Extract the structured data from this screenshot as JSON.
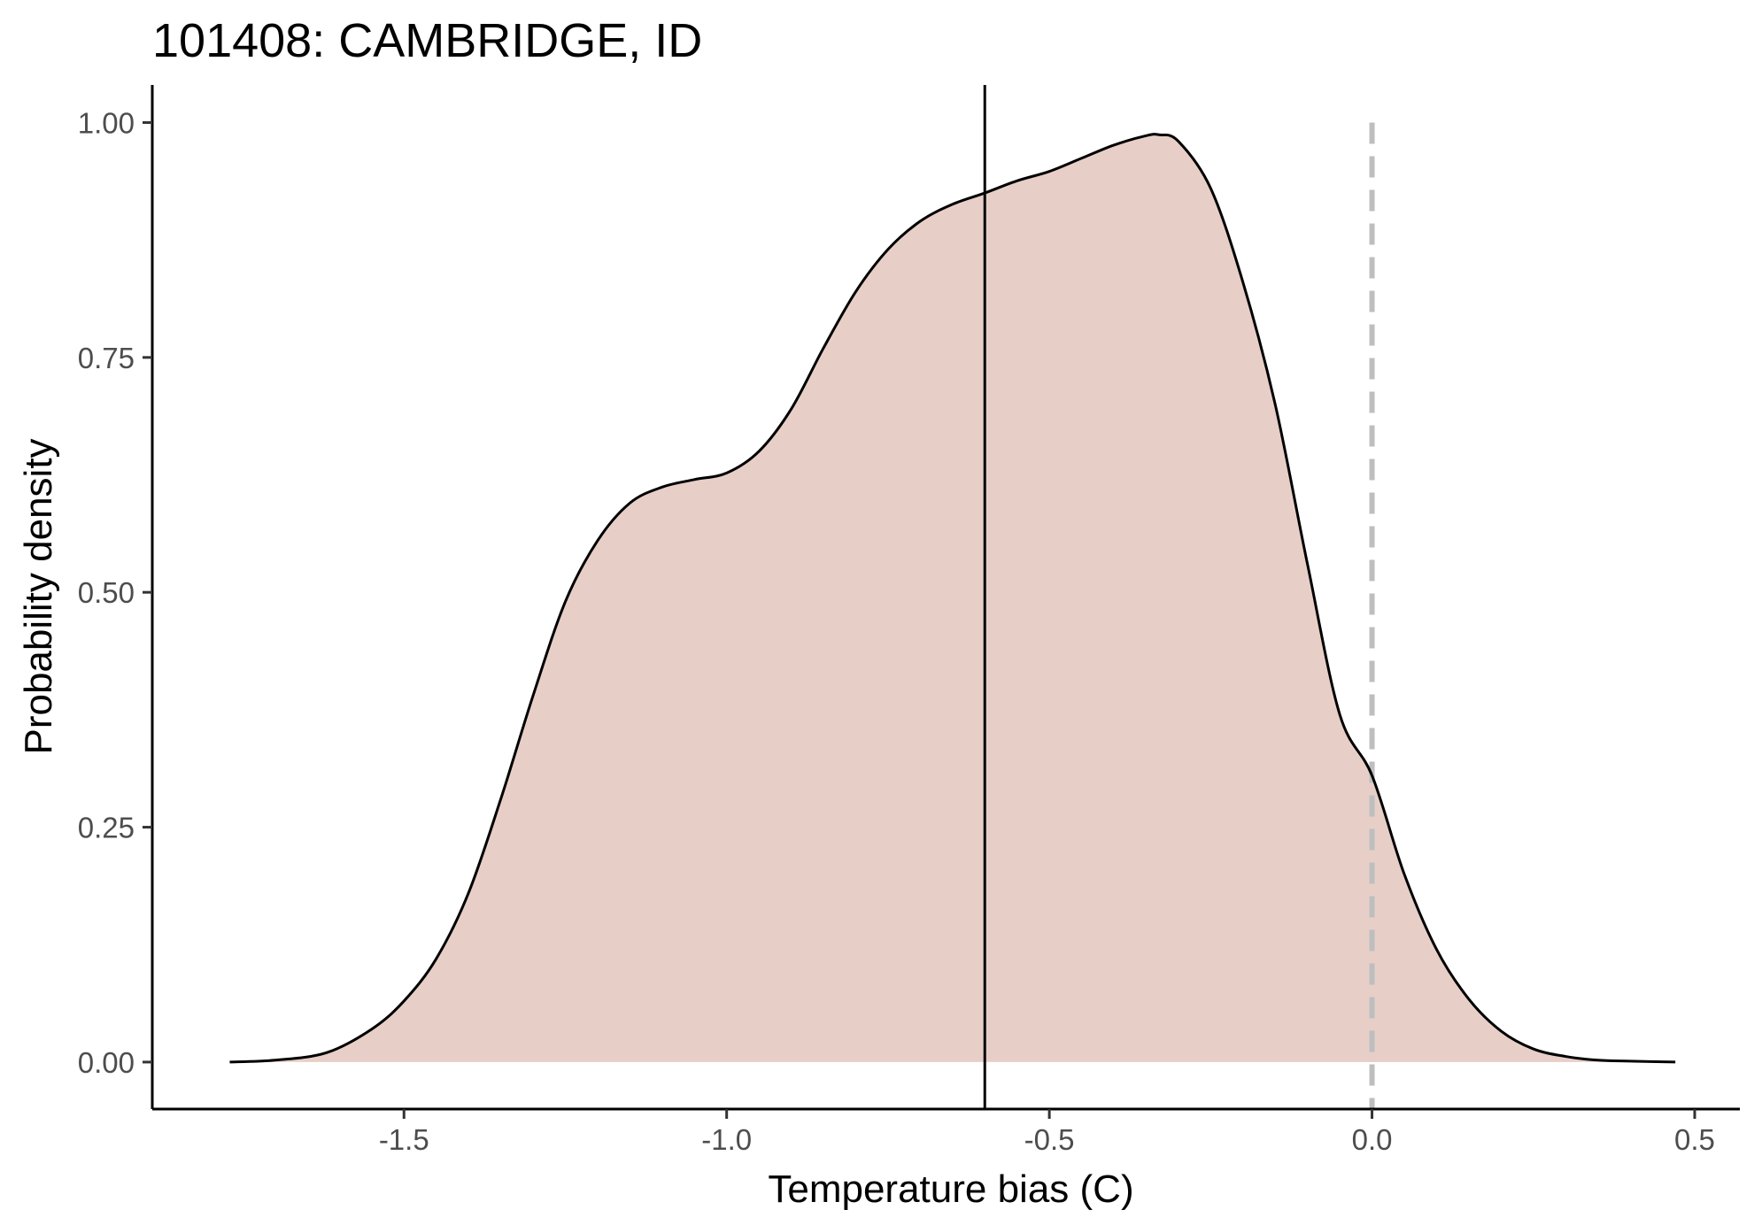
{
  "chart_data": {
    "type": "area",
    "title": "101408: CAMBRIDGE, ID",
    "xlabel": "Temperature bias (C)",
    "ylabel": "Probability density",
    "xlim": [
      -1.89,
      0.57
    ],
    "ylim": [
      -0.05,
      1.04
    ],
    "x_ticks": [
      -1.5,
      -1.0,
      -0.5,
      0.0,
      0.5
    ],
    "x_tick_labels": [
      "-1.5",
      "-1.0",
      "-0.5",
      "0.0",
      "0.5"
    ],
    "y_ticks": [
      0.0,
      0.25,
      0.5,
      0.75,
      1.0
    ],
    "y_tick_labels": [
      "0.00",
      "0.25",
      "0.50",
      "0.75",
      "1.00"
    ],
    "grid": false,
    "legend": "none",
    "fill_color": "#e7cfc8",
    "line_color": "#000000",
    "series": [
      {
        "x": [
          -1.77,
          -1.7,
          -1.62,
          -1.55,
          -1.5,
          -1.45,
          -1.4,
          -1.35,
          -1.3,
          -1.25,
          -1.2,
          -1.15,
          -1.1,
          -1.05,
          -1.0,
          -0.95,
          -0.9,
          -0.85,
          -0.8,
          -0.75,
          -0.7,
          -0.65,
          -0.6,
          -0.55,
          -0.5,
          -0.45,
          -0.4,
          -0.35,
          -0.33,
          -0.3,
          -0.25,
          -0.2,
          -0.15,
          -0.1,
          -0.05,
          0.0,
          0.05,
          0.1,
          0.15,
          0.2,
          0.25,
          0.3,
          0.35,
          0.4,
          0.47
        ],
        "values": [
          0.0,
          0.002,
          0.01,
          0.035,
          0.065,
          0.11,
          0.18,
          0.28,
          0.39,
          0.49,
          0.555,
          0.595,
          0.612,
          0.62,
          0.627,
          0.65,
          0.695,
          0.76,
          0.82,
          0.865,
          0.895,
          0.913,
          0.925,
          0.938,
          0.948,
          0.962,
          0.976,
          0.986,
          0.987,
          0.98,
          0.93,
          0.83,
          0.7,
          0.53,
          0.37,
          0.305,
          0.2,
          0.12,
          0.067,
          0.033,
          0.014,
          0.006,
          0.002,
          0.001,
          0.0
        ]
      }
    ],
    "reference_lines": [
      {
        "x": -0.6,
        "style": "solid",
        "color": "#000000"
      },
      {
        "x": 0.0,
        "style": "dashed",
        "color": "#bebebe"
      }
    ]
  }
}
